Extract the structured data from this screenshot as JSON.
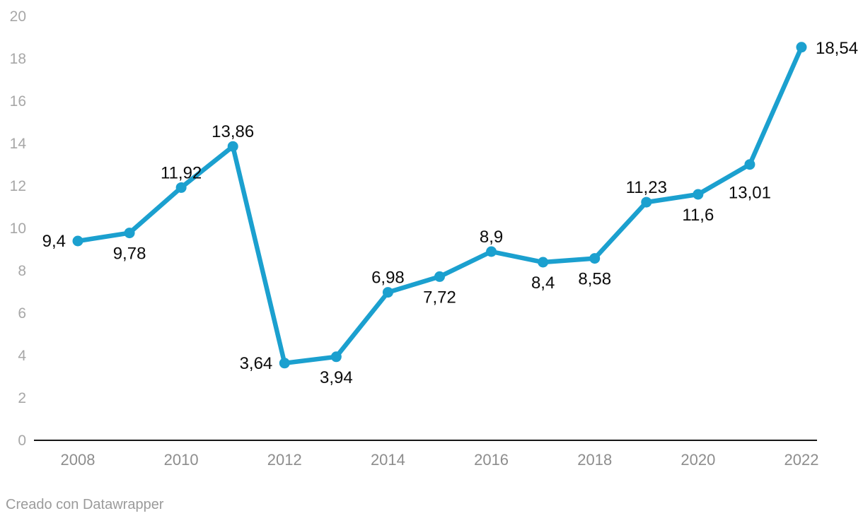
{
  "chart_data": {
    "type": "line",
    "x": [
      2008,
      2009,
      2010,
      2011,
      2012,
      2013,
      2014,
      2015,
      2016,
      2017,
      2018,
      2019,
      2020,
      2021,
      2022
    ],
    "values": [
      9.4,
      9.78,
      11.92,
      13.86,
      3.64,
      3.94,
      6.98,
      7.72,
      8.9,
      8.4,
      8.58,
      11.23,
      11.6,
      13.01,
      18.54
    ],
    "point_labels": [
      "9,4",
      "9,78",
      "11,92",
      "13,86",
      "3,64",
      "3,94",
      "6,98",
      "7,72",
      "8,9",
      "8,4",
      "8,58",
      "11,23",
      "11,6",
      "13,01",
      "18,54"
    ],
    "label_positions": [
      "left",
      "below",
      "above",
      "above",
      "left",
      "below",
      "above",
      "below",
      "above",
      "below",
      "below",
      "above",
      "below",
      "below-far",
      "right"
    ],
    "x_tick_labels": [
      "2008",
      "2010",
      "2012",
      "2014",
      "2016",
      "2018",
      "2020",
      "2022"
    ],
    "y_ticks": [
      0,
      2,
      4,
      6,
      8,
      10,
      12,
      14,
      16,
      18,
      20
    ],
    "ylim": [
      0,
      20
    ],
    "grid": false,
    "legend": "none",
    "title": "",
    "xlabel": "",
    "ylabel": "",
    "line_color": "#1BA0CF",
    "dot_color": "#1BA0CF",
    "axis_color": "#161616"
  },
  "footer": {
    "prefix": "Creado con ",
    "link_text": "Datawrapper"
  }
}
